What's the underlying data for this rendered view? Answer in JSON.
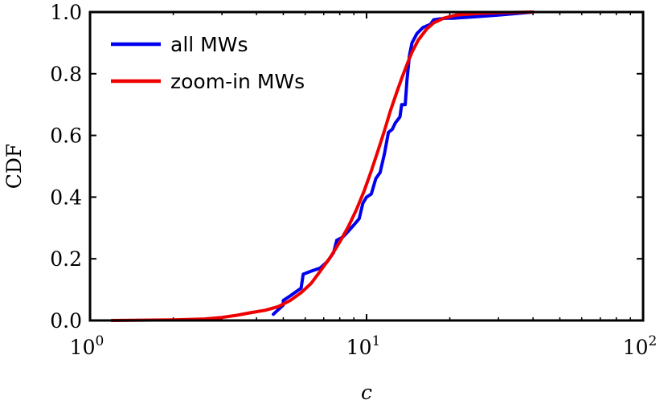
{
  "chart_data": {
    "type": "line",
    "title": "",
    "xlabel": "c",
    "ylabel": "CDF",
    "xscale": "log",
    "xlim": [
      1,
      100
    ],
    "ylim": [
      0.0,
      1.0
    ],
    "x_ticks": [
      {
        "value": 1,
        "base": "10",
        "exp": "0"
      },
      {
        "value": 10,
        "base": "10",
        "exp": "1"
      },
      {
        "value": 100,
        "base": "10",
        "exp": "2"
      }
    ],
    "y_ticks": [
      {
        "value": 0.0,
        "label": "0.0"
      },
      {
        "value": 0.2,
        "label": "0.2"
      },
      {
        "value": 0.4,
        "label": "0.4"
      },
      {
        "value": 0.6,
        "label": "0.6"
      },
      {
        "value": 0.8,
        "label": "0.8"
      },
      {
        "value": 1.0,
        "label": "1.0"
      }
    ],
    "legend_position": "top-left",
    "series": [
      {
        "name": "all MWs",
        "color": "#0000ee",
        "x": [
          4.6,
          5.0,
          5.0,
          5.3,
          5.8,
          5.9,
          6.3,
          6.8,
          7.2,
          7.6,
          7.8,
          8.2,
          8.6,
          9.0,
          9.4,
          9.7,
          10.0,
          10.4,
          10.8,
          11.2,
          11.6,
          12.0,
          12.4,
          12.7,
          13.2,
          13.4,
          13.8,
          14.0,
          14.3,
          14.6,
          15.2,
          16.0,
          17.0,
          17.5,
          18.5,
          19.5,
          20.5,
          25.0,
          30.0,
          40.0
        ],
        "y": [
          0.02,
          0.05,
          0.065,
          0.08,
          0.105,
          0.15,
          0.16,
          0.17,
          0.19,
          0.22,
          0.26,
          0.27,
          0.29,
          0.31,
          0.33,
          0.38,
          0.4,
          0.41,
          0.46,
          0.48,
          0.54,
          0.61,
          0.62,
          0.64,
          0.66,
          0.7,
          0.7,
          0.78,
          0.86,
          0.9,
          0.93,
          0.95,
          0.96,
          0.975,
          0.978,
          0.98,
          0.98,
          0.985,
          0.99,
          1.0
        ]
      },
      {
        "name": "zoom-in MWs",
        "color": "#ee0000",
        "x": [
          1.2,
          2.0,
          2.6,
          3.0,
          3.4,
          3.8,
          4.3,
          4.8,
          5.3,
          5.8,
          6.3,
          6.8,
          7.4,
          8.0,
          8.6,
          9.2,
          9.8,
          10.4,
          11.0,
          11.6,
          12.2,
          12.8,
          13.4,
          14.0,
          14.6,
          15.4,
          16.5,
          17.5,
          19.0,
          21.0,
          25.0,
          30.0,
          40.0
        ],
        "y": [
          0.0,
          0.002,
          0.005,
          0.01,
          0.017,
          0.025,
          0.033,
          0.045,
          0.065,
          0.09,
          0.12,
          0.16,
          0.205,
          0.255,
          0.305,
          0.36,
          0.42,
          0.485,
          0.55,
          0.615,
          0.68,
          0.735,
          0.785,
          0.83,
          0.87,
          0.91,
          0.945,
          0.965,
          0.98,
          0.99,
          0.995,
          0.998,
          1.0
        ]
      }
    ]
  }
}
